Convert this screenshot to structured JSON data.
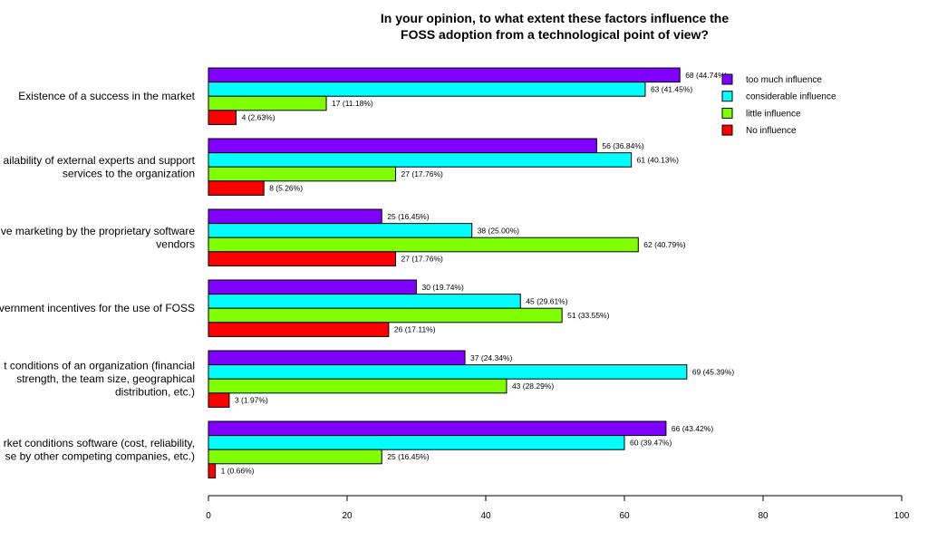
{
  "chart_data": {
    "type": "bar",
    "orientation": "horizontal",
    "title": [
      "In your opinion, to what extent these factors influence the",
      "FOSS adoption from a technological point of view?"
    ],
    "categories": [
      [
        "Existence of a success in the market"
      ],
      [
        "ailability of external experts and support",
        "services to the organization"
      ],
      [
        "ve marketing by the proprietary software",
        "vendors"
      ],
      [
        "vernment incentives for the use of FOSS"
      ],
      [
        "t conditions of an organization (financial",
        "strength, the team size, geographical",
        "distribution, etc.)"
      ],
      [
        "rket conditions software (cost, reliability,",
        "se by other competing companies, etc.)"
      ]
    ],
    "series": [
      {
        "name": "too much influence",
        "color": "#7f00ff",
        "values": [
          68,
          56,
          25,
          30,
          37,
          66
        ],
        "labels": [
          "68 (44.74%)",
          "56 (36.84%)",
          "25 (16.45%)",
          "30 (19.74%)",
          "37 (24.34%)",
          "66 (43.42%)"
        ]
      },
      {
        "name": "considerable influence",
        "color": "#00ffff",
        "values": [
          63,
          61,
          38,
          45,
          69,
          60
        ],
        "labels": [
          "63 (41.45%)",
          "61 (40.13%)",
          "38 (25.00%)",
          "45 (29.61%)",
          "69 (45.39%)",
          "60 (39.47%)"
        ]
      },
      {
        "name": "little influence",
        "color": "#80ff00",
        "values": [
          17,
          27,
          62,
          51,
          43,
          25
        ],
        "labels": [
          "17 (11.18%)",
          "27 (17.76%)",
          "62 (40.79%)",
          "51 (33.55%)",
          "43 (28.29%)",
          "25 (16.45%)"
        ]
      },
      {
        "name": "No influence",
        "color": "#ff0000",
        "values": [
          4,
          8,
          27,
          26,
          3,
          1
        ],
        "labels": [
          "4 (2.63%)",
          "8 (5.26%)",
          "27 (17.76%)",
          "26 (17.11%)",
          "3 (1.97%)",
          "1 (0.66%)"
        ]
      }
    ],
    "xlim": [
      0,
      100
    ],
    "xticks": [
      0,
      20,
      40,
      60,
      80,
      100
    ],
    "xlabel": "",
    "ylabel": "",
    "grid": false,
    "legend_position": "top-right"
  }
}
